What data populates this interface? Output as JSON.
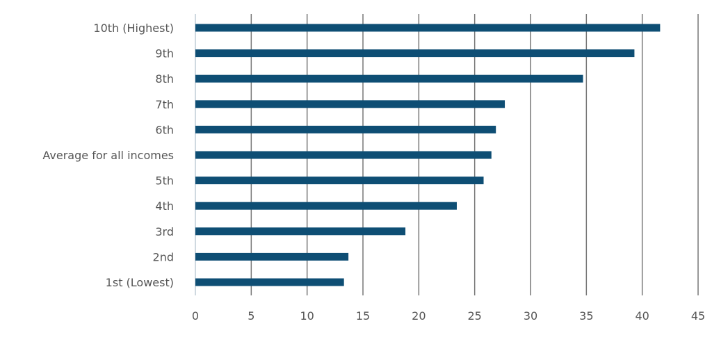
{
  "chart_data": {
    "type": "bar",
    "orientation": "horizontal",
    "title": "",
    "xlabel": "",
    "ylabel": "",
    "categories": [
      "10th (Highest)",
      "9th",
      "8th",
      "7th",
      "6th",
      "Average for all incomes",
      "5th",
      "4th",
      "3rd",
      "2nd",
      "1st (Lowest)"
    ],
    "values": [
      41.6,
      39.3,
      34.7,
      27.7,
      26.9,
      26.5,
      25.8,
      23.4,
      18.8,
      13.7,
      13.3
    ],
    "xlim": [
      0,
      45
    ],
    "xticks": [
      0,
      5,
      10,
      15,
      20,
      25,
      30,
      35,
      40,
      45
    ],
    "grid": "vertical",
    "legend": "none",
    "bar_color": "#0e4e74",
    "grid_color": "#777777",
    "text_color": "#555555"
  }
}
